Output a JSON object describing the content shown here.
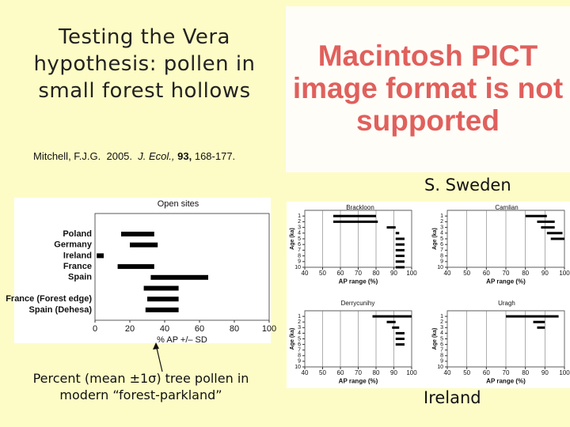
{
  "title": "Testing the Vera hypothesis: pollen in small forest hollows",
  "placeholder": "Macintosh PICT image format is not supported",
  "citation": {
    "authors": "Mitchell, F.J.G.",
    "year": "2005.",
    "journal": "J. Ecol.,",
    "volume": "93,",
    "pages": "168-177."
  },
  "caption": "Percent (mean ±1σ) tree pollen in modern “forest-parkland”",
  "region_labels": [
    "S. Sweden",
    "Ireland"
  ],
  "chart_data": [
    {
      "type": "range-bar",
      "title": "Open sites",
      "categories": [
        "Poland",
        "Germany",
        "Ireland",
        "France",
        "Spain",
        null,
        "France (Forest edge)",
        "Spain (Dehesa)"
      ],
      "starts": [
        15,
        20,
        1,
        13,
        32,
        28,
        30,
        29
      ],
      "ends": [
        34,
        36,
        5,
        34,
        65,
        48,
        48,
        48
      ],
      "color": "#000000",
      "xlabel": "% AP +/– SD",
      "xlim": [
        0,
        100
      ],
      "xticks": [
        0,
        20,
        40,
        60,
        80,
        100
      ],
      "grid": false
    },
    {
      "type": "range-bar",
      "title": "Brackloon",
      "y": [
        1,
        2,
        3,
        4,
        5,
        6,
        7,
        8,
        9,
        10
      ],
      "starts": [
        56,
        56,
        86,
        91,
        91,
        91,
        91,
        91,
        91,
        91
      ],
      "ends": [
        80,
        81,
        91,
        93,
        96,
        96,
        96,
        96,
        96,
        96
      ],
      "color": "#000000",
      "xlabel": "AP range (%)",
      "ylabel": "Age (ka)",
      "xlim": [
        40,
        100
      ],
      "xticks": [
        40,
        50,
        60,
        70,
        80,
        90,
        100
      ],
      "ylim": [
        0,
        10
      ],
      "yticks": [
        1,
        2,
        3,
        4,
        5,
        6,
        7,
        8,
        9,
        10
      ],
      "grid": true
    },
    {
      "type": "range-bar",
      "title": "Camlian",
      "y": [
        1,
        2,
        3,
        4,
        5
      ],
      "starts": [
        80,
        86,
        88,
        91,
        93
      ],
      "ends": [
        91,
        95,
        95,
        99,
        100
      ],
      "color": "#000000",
      "xlabel": "AP range (%)",
      "ylabel": "Age (ka)",
      "xlim": [
        40,
        100
      ],
      "xticks": [
        40,
        50,
        60,
        70,
        80,
        90,
        100
      ],
      "ylim": [
        0,
        10
      ],
      "yticks": [
        1,
        2,
        3,
        4,
        5,
        6,
        7,
        8,
        9,
        10
      ],
      "grid": true
    },
    {
      "type": "range-bar",
      "title": "Derrycunihy",
      "y": [
        1,
        2,
        3,
        4,
        5,
        6
      ],
      "starts": [
        78,
        86,
        89,
        91,
        91,
        91
      ],
      "ends": [
        100,
        91,
        93,
        96,
        96,
        96
      ],
      "color": "#000000",
      "xlabel": "AP range (%)",
      "ylabel": "Age (ka)",
      "xlim": [
        40,
        100
      ],
      "xticks": [
        40,
        50,
        60,
        70,
        80,
        90,
        100
      ],
      "ylim": [
        0,
        10
      ],
      "yticks": [
        1,
        2,
        3,
        4,
        5,
        6,
        7,
        8,
        9,
        10
      ],
      "grid": true
    },
    {
      "type": "range-bar",
      "title": "Uragh",
      "y": [
        1,
        2,
        3
      ],
      "starts": [
        70,
        84,
        86
      ],
      "ends": [
        97,
        90,
        90
      ],
      "color": "#000000",
      "xlabel": "AP range (%)",
      "ylabel": "Age (ka)",
      "xlim": [
        40,
        100
      ],
      "xticks": [
        40,
        50,
        60,
        70,
        80,
        90,
        100
      ],
      "ylim": [
        0,
        10
      ],
      "yticks": [
        1,
        2,
        3,
        4,
        5,
        6,
        7,
        8,
        9,
        10
      ],
      "grid": true
    }
  ]
}
